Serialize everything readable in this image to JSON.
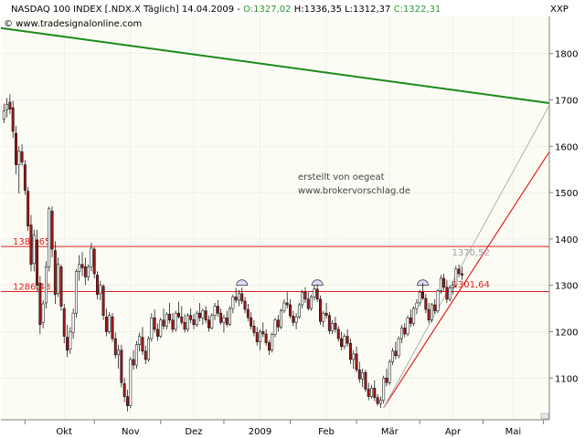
{
  "header": {
    "title_prefix": "NASDAQ 100 INDEX [.NDX.X  Täglich] 14.04.2009 - ",
    "open": "O:1327,02",
    "high_low": " H:1336,35 L:1312,37 ",
    "close": "C:1322,31",
    "copyright": "© www.tradesignalonline.com",
    "axis_tag": "XXP"
  },
  "annotation": {
    "line1": "erstellt von oegeat",
    "line2": "www.brokervorschlag.de"
  },
  "colors": {
    "background": "#fcfcf4",
    "grid": "#c8c8c8",
    "candle_up": "#ffffff",
    "candle_down": "#a01818",
    "horizontal_levels": "#e02020",
    "downtrend": "#1a8a1a",
    "uptrend": "#e02020",
    "channel": "#b0b0b0",
    "marker_fill": "#dcdcf0"
  },
  "chart_data": {
    "type": "candlestick",
    "ylim": [
      1010,
      1880
    ],
    "y_ticks": [
      1100,
      1200,
      1300,
      1400,
      1500,
      1600,
      1700,
      1800
    ],
    "y_tick_labels": [
      "1100",
      "1200",
      "1300",
      "1400",
      "1500",
      "1600",
      "1700",
      "1800"
    ],
    "x_labels": [
      {
        "label": "Okt",
        "day": 21
      },
      {
        "label": "Nov",
        "day": 43
      },
      {
        "label": "Dez",
        "day": 64
      },
      {
        "label": "2009",
        "day": 86
      },
      {
        "label": "Feb",
        "day": 108
      },
      {
        "label": "Mär",
        "day": 129
      },
      {
        "label": "Apr",
        "day": 150
      },
      {
        "label": "Mai",
        "day": 170
      }
    ],
    "x_ticks": [
      8,
      31,
      53,
      74,
      96,
      118,
      139,
      160,
      180
    ],
    "x_range": [
      0,
      182
    ],
    "levels": [
      {
        "value": 1383.65,
        "label": "1383,65"
      },
      {
        "value": 1286.48,
        "label": "1286,48"
      }
    ],
    "price_labels": [
      {
        "day": 150,
        "value": 1301.64,
        "label": "1301,64",
        "color": "#e02020"
      },
      {
        "day": 150,
        "value": 1370.52,
        "label": "1370,52",
        "color": "#a0a0a0"
      }
    ],
    "trendlines": [
      {
        "name": "downtrend",
        "from": [
          0,
          1855
        ],
        "to": [
          182,
          1693
        ]
      },
      {
        "name": "uptrend",
        "from": [
          127,
          1036
        ],
        "to": [
          182,
          1588
        ]
      },
      {
        "name": "channel",
        "from": [
          127,
          1036
        ],
        "to": [
          182,
          1688
        ]
      }
    ],
    "markers": [
      {
        "day": 80,
        "value": 1300
      },
      {
        "day": 105,
        "value": 1300
      },
      {
        "day": 140,
        "value": 1300
      }
    ],
    "candles": [
      [
        1,
        1659,
        1692,
        1650,
        1676
      ],
      [
        2,
        1679,
        1704,
        1662,
        1690
      ],
      [
        3,
        1695,
        1712,
        1670,
        1680
      ],
      [
        4,
        1683,
        1698,
        1618,
        1632
      ],
      [
        5,
        1628,
        1644,
        1540,
        1560
      ],
      [
        6,
        1560,
        1600,
        1498,
        1590
      ],
      [
        7,
        1588,
        1604,
        1558,
        1566
      ],
      [
        8,
        1560,
        1570,
        1495,
        1505
      ],
      [
        9,
        1503,
        1512,
        1418,
        1428
      ],
      [
        10,
        1430,
        1452,
        1330,
        1345
      ],
      [
        11,
        1347,
        1420,
        1330,
        1408
      ],
      [
        12,
        1398,
        1420,
        1288,
        1300
      ],
      [
        13,
        1305,
        1320,
        1195,
        1215
      ],
      [
        14,
        1220,
        1268,
        1207,
        1260
      ],
      [
        15,
        1262,
        1352,
        1250,
        1340
      ],
      [
        16,
        1340,
        1470,
        1330,
        1465
      ],
      [
        17,
        1460,
        1470,
        1360,
        1378
      ],
      [
        18,
        1375,
        1395,
        1260,
        1280
      ],
      [
        19,
        1282,
        1360,
        1275,
        1345
      ],
      [
        20,
        1340,
        1345,
        1245,
        1255
      ],
      [
        21,
        1250,
        1260,
        1175,
        1190
      ],
      [
        22,
        1188,
        1215,
        1145,
        1160
      ],
      [
        23,
        1162,
        1210,
        1152,
        1200
      ],
      [
        24,
        1198,
        1250,
        1185,
        1240
      ],
      [
        25,
        1240,
        1335,
        1230,
        1330
      ],
      [
        26,
        1330,
        1365,
        1310,
        1345
      ],
      [
        27,
        1345,
        1372,
        1320,
        1338
      ],
      [
        28,
        1340,
        1360,
        1300,
        1318
      ],
      [
        29,
        1318,
        1345,
        1310,
        1340
      ],
      [
        30,
        1340,
        1392,
        1330,
        1380
      ],
      [
        31,
        1378,
        1382,
        1315,
        1325
      ],
      [
        32,
        1322,
        1330,
        1270,
        1280
      ],
      [
        33,
        1282,
        1310,
        1268,
        1300
      ],
      [
        34,
        1298,
        1302,
        1225,
        1235
      ],
      [
        35,
        1232,
        1250,
        1190,
        1200
      ],
      [
        36,
        1200,
        1242,
        1195,
        1235
      ],
      [
        37,
        1232,
        1240,
        1178,
        1185
      ],
      [
        38,
        1185,
        1198,
        1142,
        1150
      ],
      [
        39,
        1150,
        1172,
        1120,
        1160
      ],
      [
        40,
        1160,
        1172,
        1080,
        1090
      ],
      [
        41,
        1088,
        1100,
        1048,
        1060
      ],
      [
        42,
        1060,
        1075,
        1028,
        1040
      ],
      [
        43,
        1040,
        1145,
        1035,
        1140
      ],
      [
        44,
        1140,
        1160,
        1118,
        1128
      ],
      [
        45,
        1128,
        1180,
        1120,
        1172
      ],
      [
        46,
        1172,
        1198,
        1158,
        1190
      ],
      [
        47,
        1188,
        1210,
        1150,
        1158
      ],
      [
        48,
        1158,
        1170,
        1130,
        1140
      ],
      [
        49,
        1140,
        1190,
        1135,
        1185
      ],
      [
        50,
        1185,
        1240,
        1178,
        1230
      ],
      [
        51,
        1230,
        1248,
        1198,
        1205
      ],
      [
        52,
        1205,
        1218,
        1180,
        1190
      ],
      [
        53,
        1190,
        1230,
        1186,
        1225
      ],
      [
        54,
        1225,
        1250,
        1205,
        1212
      ],
      [
        55,
        1212,
        1242,
        1205,
        1238
      ],
      [
        56,
        1238,
        1262,
        1218,
        1225
      ],
      [
        57,
        1225,
        1240,
        1198,
        1205
      ],
      [
        58,
        1205,
        1245,
        1200,
        1240
      ],
      [
        59,
        1240,
        1265,
        1228,
        1232
      ],
      [
        60,
        1232,
        1255,
        1215,
        1220
      ],
      [
        61,
        1220,
        1238,
        1198,
        1205
      ],
      [
        62,
        1205,
        1240,
        1200,
        1235
      ],
      [
        63,
        1235,
        1250,
        1218,
        1226
      ],
      [
        64,
        1226,
        1238,
        1205,
        1215
      ],
      [
        65,
        1215,
        1245,
        1210,
        1240
      ],
      [
        66,
        1240,
        1262,
        1222,
        1230
      ],
      [
        67,
        1230,
        1250,
        1215,
        1245
      ],
      [
        68,
        1245,
        1255,
        1218,
        1225
      ],
      [
        69,
        1225,
        1235,
        1200,
        1208
      ],
      [
        70,
        1208,
        1240,
        1205,
        1235
      ],
      [
        71,
        1235,
        1262,
        1225,
        1255
      ],
      [
        72,
        1255,
        1268,
        1232,
        1240
      ],
      [
        73,
        1240,
        1250,
        1215,
        1220
      ],
      [
        74,
        1220,
        1236,
        1198,
        1230
      ],
      [
        75,
        1230,
        1245,
        1210,
        1216
      ],
      [
        76,
        1216,
        1255,
        1212,
        1250
      ],
      [
        77,
        1250,
        1280,
        1240,
        1275
      ],
      [
        78,
        1275,
        1295,
        1262,
        1268
      ],
      [
        79,
        1268,
        1290,
        1255,
        1282
      ],
      [
        80,
        1282,
        1295,
        1260,
        1266
      ],
      [
        81,
        1266,
        1275,
        1240,
        1248
      ],
      [
        82,
        1248,
        1260,
        1222,
        1230
      ],
      [
        83,
        1230,
        1242,
        1205,
        1212
      ],
      [
        84,
        1212,
        1225,
        1190,
        1198
      ],
      [
        85,
        1198,
        1210,
        1170,
        1178
      ],
      [
        86,
        1178,
        1205,
        1160,
        1200
      ],
      [
        87,
        1200,
        1220,
        1188,
        1195
      ],
      [
        88,
        1195,
        1205,
        1170,
        1176
      ],
      [
        89,
        1176,
        1182,
        1150,
        1160
      ],
      [
        90,
        1160,
        1198,
        1155,
        1194
      ],
      [
        91,
        1194,
        1230,
        1188,
        1225
      ],
      [
        92,
        1225,
        1236,
        1200,
        1210
      ],
      [
        93,
        1210,
        1250,
        1205,
        1245
      ],
      [
        94,
        1245,
        1270,
        1240,
        1262
      ],
      [
        95,
        1262,
        1285,
        1250,
        1258
      ],
      [
        96,
        1258,
        1270,
        1228,
        1234
      ],
      [
        97,
        1234,
        1245,
        1212,
        1220
      ],
      [
        98,
        1220,
        1240,
        1205,
        1232
      ],
      [
        99,
        1232,
        1262,
        1228,
        1258
      ],
      [
        100,
        1258,
        1290,
        1250,
        1285
      ],
      [
        101,
        1285,
        1296,
        1262,
        1270
      ],
      [
        102,
        1270,
        1285,
        1245,
        1250
      ],
      [
        103,
        1250,
        1280,
        1245,
        1275
      ],
      [
        104,
        1275,
        1300,
        1268,
        1292
      ],
      [
        105,
        1292,
        1302,
        1264,
        1270
      ],
      [
        106,
        1270,
        1278,
        1215,
        1222
      ],
      [
        107,
        1222,
        1245,
        1210,
        1240
      ],
      [
        108,
        1240,
        1262,
        1228,
        1235
      ],
      [
        109,
        1235,
        1242,
        1195,
        1202
      ],
      [
        110,
        1202,
        1225,
        1195,
        1218
      ],
      [
        111,
        1218,
        1232,
        1198,
        1205
      ],
      [
        112,
        1205,
        1212,
        1178,
        1185
      ],
      [
        113,
        1185,
        1200,
        1160,
        1168
      ],
      [
        114,
        1168,
        1195,
        1162,
        1190
      ],
      [
        115,
        1190,
        1205,
        1168,
        1175
      ],
      [
        116,
        1175,
        1185,
        1130,
        1140
      ],
      [
        117,
        1140,
        1160,
        1120,
        1152
      ],
      [
        118,
        1152,
        1168,
        1112,
        1118
      ],
      [
        119,
        1118,
        1135,
        1090,
        1098
      ],
      [
        120,
        1098,
        1120,
        1080,
        1112
      ],
      [
        121,
        1112,
        1118,
        1070,
        1076
      ],
      [
        122,
        1076,
        1090,
        1052,
        1060
      ],
      [
        123,
        1060,
        1085,
        1055,
        1078
      ],
      [
        124,
        1078,
        1095,
        1050,
        1058
      ],
      [
        125,
        1058,
        1065,
        1040,
        1045
      ],
      [
        126,
        1045,
        1060,
        1035,
        1052
      ],
      [
        127,
        1052,
        1105,
        1045,
        1100
      ],
      [
        128,
        1100,
        1120,
        1082,
        1090
      ],
      [
        129,
        1090,
        1140,
        1085,
        1135
      ],
      [
        130,
        1135,
        1165,
        1128,
        1158
      ],
      [
        131,
        1158,
        1178,
        1140,
        1148
      ],
      [
        132,
        1148,
        1190,
        1142,
        1185
      ],
      [
        133,
        1185,
        1215,
        1175,
        1208
      ],
      [
        134,
        1208,
        1218,
        1188,
        1195
      ],
      [
        135,
        1195,
        1235,
        1190,
        1230
      ],
      [
        136,
        1230,
        1248,
        1210,
        1218
      ],
      [
        137,
        1218,
        1255,
        1212,
        1250
      ],
      [
        138,
        1250,
        1270,
        1238,
        1262
      ],
      [
        139,
        1262,
        1290,
        1255,
        1285
      ],
      [
        140,
        1285,
        1305,
        1268,
        1272
      ],
      [
        141,
        1272,
        1282,
        1240,
        1248
      ],
      [
        142,
        1248,
        1262,
        1218,
        1225
      ],
      [
        143,
        1225,
        1262,
        1220,
        1258
      ],
      [
        144,
        1258,
        1270,
        1238,
        1245
      ],
      [
        145,
        1245,
        1292,
        1240,
        1288
      ],
      [
        146,
        1288,
        1322,
        1282,
        1315
      ],
      [
        147,
        1315,
        1325,
        1288,
        1296
      ],
      [
        148,
        1296,
        1312,
        1262,
        1270
      ],
      [
        149,
        1270,
        1300,
        1265,
        1294
      ],
      [
        150,
        1294,
        1308,
        1280,
        1300
      ],
      [
        151,
        1300,
        1342,
        1295,
        1335
      ],
      [
        152,
        1335,
        1345,
        1318,
        1325
      ],
      [
        153,
        1325,
        1340,
        1312,
        1322
      ]
    ]
  }
}
